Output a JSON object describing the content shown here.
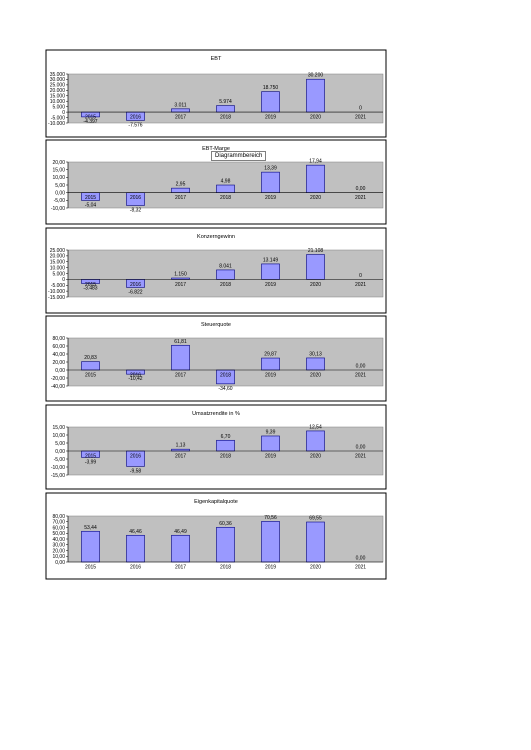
{
  "tooltip": "Diagrammbereich",
  "colors": {
    "bar": "#9999ff",
    "bar_stroke": "#000080",
    "plot_bg": "#c0c0c0",
    "frame": "#000000"
  },
  "chart_data": [
    {
      "type": "bar",
      "title": "EBT",
      "categories": [
        "2015",
        "2016",
        "2017",
        "2018",
        "2019",
        "2020",
        "2021"
      ],
      "values": [
        -4397,
        -7576,
        3011,
        5974,
        18750,
        30200,
        0
      ],
      "labels": [
        "-4.397",
        "-7.576",
        "3.011",
        "5.974",
        "18.750",
        "30.200",
        "0"
      ],
      "yticks": [
        "35.000",
        "30.000",
        "25.000",
        "20.000",
        "15.000",
        "10.000",
        "5.000",
        "0",
        "-5.000",
        "-10.000"
      ],
      "ylim": [
        -10000,
        35000
      ],
      "grid": false
    },
    {
      "type": "bar",
      "title": "EBT-Marge",
      "categories": [
        "2015",
        "2016",
        "2017",
        "2018",
        "2019",
        "2020",
        "2021"
      ],
      "values": [
        -5.04,
        -8.32,
        2.95,
        4.98,
        13.39,
        17.94,
        0
      ],
      "labels": [
        "-5,04",
        "-8,32",
        "2,95",
        "4,98",
        "13,39",
        "17,94",
        "0,00"
      ],
      "yticks": [
        "20,00",
        "15,00",
        "10,00",
        "5,00",
        "0,00",
        "-5,00",
        "-10,00"
      ],
      "ylim": [
        -10,
        20
      ],
      "grid": false
    },
    {
      "type": "bar",
      "title": "Konzerngewinn",
      "categories": [
        "2015",
        "2016",
        "2017",
        "2018",
        "2019",
        "2020",
        "2021"
      ],
      "values": [
        -3483,
        -6822,
        1150,
        8041,
        13149,
        21108,
        0
      ],
      "labels": [
        "-3.483",
        "-6.822",
        "1.150",
        "8.041",
        "13.149",
        "21.108",
        "0"
      ],
      "yticks": [
        "25.000",
        "20.000",
        "15.000",
        "10.000",
        "5.000",
        "0",
        "-5.000",
        "-10.000",
        "-15.000"
      ],
      "ylim": [
        -15000,
        25000
      ],
      "grid": false
    },
    {
      "type": "bar",
      "title": "Steuerquote",
      "categories": [
        "2015",
        "2016",
        "2017",
        "2018",
        "2019",
        "2020",
        "2021"
      ],
      "values": [
        20.83,
        -10.42,
        61.81,
        -34.6,
        29.87,
        30.13,
        0
      ],
      "labels": [
        "20,83",
        "-10,42",
        "61,81",
        "-34,60",
        "29,87",
        "30,13",
        "0,00"
      ],
      "yticks": [
        "80,00",
        "60,00",
        "40,00",
        "20,00",
        "0,00",
        "-20,00",
        "-40,00"
      ],
      "ylim": [
        -40,
        80
      ],
      "grid": false
    },
    {
      "type": "bar",
      "title": "Umsatzrendite in %",
      "categories": [
        "2015",
        "2016",
        "2017",
        "2018",
        "2019",
        "2020",
        "2021"
      ],
      "values": [
        -3.99,
        -9.58,
        1.13,
        6.7,
        9.39,
        12.54,
        0
      ],
      "labels": [
        "-3,99",
        "-9,58",
        "1,13",
        "6,70",
        "9,39",
        "12,54",
        "0,00"
      ],
      "yticks": [
        "15,00",
        "10,00",
        "5,00",
        "0,00",
        "-5,00",
        "-10,00",
        "-15,00"
      ],
      "ylim": [
        -15,
        15
      ],
      "grid": false
    },
    {
      "type": "bar",
      "title": "Eigenkapitalquote",
      "categories": [
        "2015",
        "2016",
        "2017",
        "2018",
        "2019",
        "2020",
        "2021"
      ],
      "values": [
        53.44,
        46.46,
        46.49,
        60.36,
        70.56,
        69.55,
        0
      ],
      "labels": [
        "53,44",
        "46,46",
        "46,49",
        "60,36",
        "70,56",
        "69,55",
        "0,00"
      ],
      "yticks": [
        "80,00",
        "70,00",
        "60,00",
        "50,00",
        "40,00",
        "30,00",
        "20,00",
        "10,00",
        "0,00"
      ],
      "ylim": [
        0,
        80
      ],
      "grid": false
    }
  ]
}
